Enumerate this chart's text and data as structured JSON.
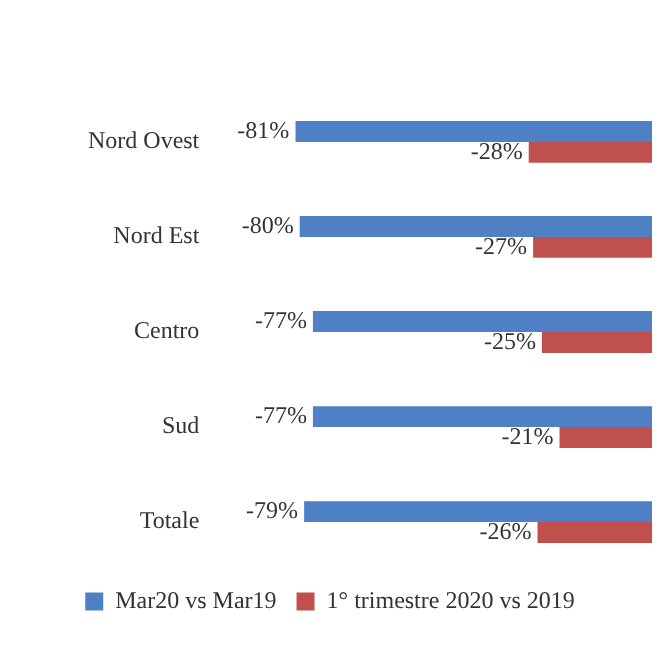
{
  "chart_data": {
    "type": "bar",
    "orientation": "horizontal",
    "categories": [
      "Nord Ovest",
      "Nord Est",
      "Centro",
      "Sud",
      "Totale"
    ],
    "series": [
      {
        "name": "Mar20 vs Mar19",
        "color": "#4f7fc4",
        "values": [
          -81,
          -80,
          -77,
          -77,
          -79
        ],
        "value_labels": [
          "-81%",
          "-80%",
          "-77%",
          "-77%",
          "-79%"
        ]
      },
      {
        "name": "1° trimestre 2020 vs 2019",
        "color": "#c0504d",
        "values": [
          -28,
          -27,
          -25,
          -21,
          -26
        ],
        "value_labels": [
          "-28%",
          "-27%",
          "-25%",
          "-21%",
          "-26%"
        ]
      }
    ],
    "xlim": [
      -81,
      0
    ],
    "tick_labels": "y",
    "legend": "bottom"
  }
}
